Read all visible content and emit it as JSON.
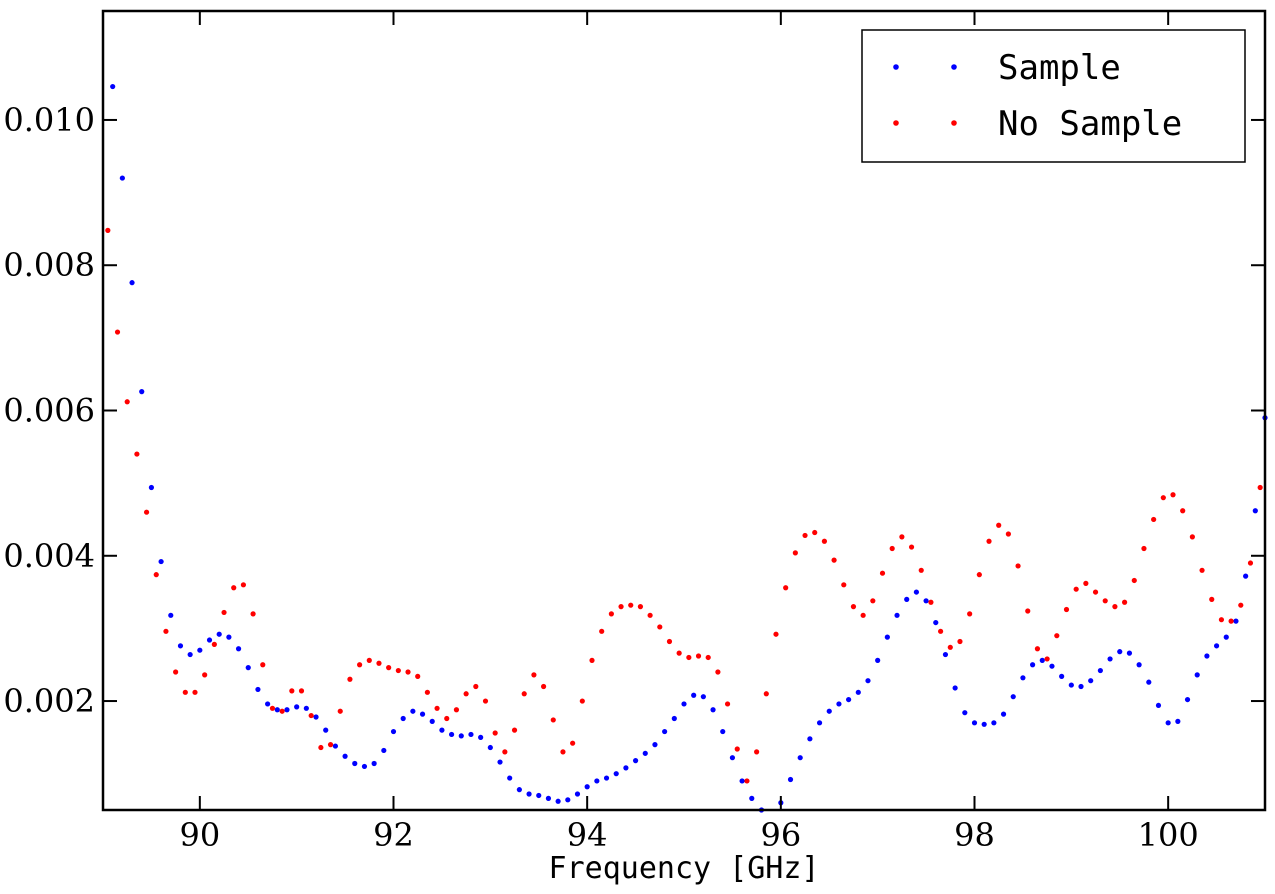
{
  "chart_data": {
    "type": "scatter",
    "title": "",
    "xlabel": "Frequency [GHz]",
    "ylabel": "",
    "xlim": [
      89.0,
      101.0
    ],
    "ylim": [
      0.0005,
      0.0115
    ],
    "xticks": [
      90,
      92,
      94,
      96,
      98,
      100
    ],
    "xtick_labels": [
      "90",
      "92",
      "94",
      "96",
      "98",
      "100"
    ],
    "yticks": [
      0.002,
      0.004,
      0.006,
      0.008,
      0.01
    ],
    "ytick_labels": [
      "0.002",
      "0.004",
      "0.006",
      "0.008",
      "0.010"
    ],
    "grid": false,
    "legend": "top-right",
    "series": [
      {
        "name": "Sample",
        "color": "#0000ff",
        "x": [
          89.1,
          89.2,
          89.3,
          89.4,
          89.5,
          89.6,
          89.7,
          89.8,
          89.9,
          90.0,
          90.1,
          90.2,
          90.3,
          90.4,
          90.5,
          90.6,
          90.7,
          90.8,
          90.9,
          91.0,
          91.1,
          91.2,
          91.3,
          91.4,
          91.5,
          91.6,
          91.7,
          91.8,
          91.9,
          92.0,
          92.1,
          92.2,
          92.3,
          92.4,
          92.5,
          92.6,
          92.7,
          92.8,
          92.9,
          93.0,
          93.1,
          93.2,
          93.3,
          93.4,
          93.5,
          93.6,
          93.7,
          93.8,
          93.9,
          94.0,
          94.1,
          94.2,
          94.3,
          94.4,
          94.5,
          94.6,
          94.7,
          94.8,
          94.9,
          95.0,
          95.1,
          95.2,
          95.3,
          95.4,
          95.5,
          95.6,
          95.7,
          95.8,
          95.9,
          96.0,
          96.1,
          96.2,
          96.3,
          96.4,
          96.5,
          96.6,
          96.7,
          96.8,
          96.9,
          97.0,
          97.1,
          97.2,
          97.3,
          97.4,
          97.5,
          97.6,
          97.7,
          97.8,
          97.9,
          98.0,
          98.1,
          98.2,
          98.3,
          98.4,
          98.5,
          98.6,
          98.7,
          98.8,
          98.9,
          99.0,
          99.1,
          99.2,
          99.3,
          99.4,
          99.5,
          99.6,
          99.7,
          99.8,
          99.9,
          100.0,
          100.1,
          100.2,
          100.3,
          100.4,
          100.5,
          100.6,
          100.7,
          100.8,
          100.9,
          101.0
        ],
        "y": [
          0.01046,
          0.0092,
          0.00776,
          0.00626,
          0.00494,
          0.00392,
          0.00318,
          0.00276,
          0.00264,
          0.0027,
          0.00284,
          0.00292,
          0.00288,
          0.00272,
          0.00246,
          0.00216,
          0.00196,
          0.00188,
          0.00188,
          0.00192,
          0.0019,
          0.00178,
          0.0016,
          0.00138,
          0.00124,
          0.00114,
          0.0011,
          0.00114,
          0.00132,
          0.00158,
          0.00176,
          0.00186,
          0.00182,
          0.00172,
          0.0016,
          0.00154,
          0.00152,
          0.00154,
          0.0015,
          0.00136,
          0.00116,
          0.00094,
          0.00078,
          0.00072,
          0.0007,
          0.00066,
          0.00062,
          0.00064,
          0.00072,
          0.00082,
          0.0009,
          0.00094,
          0.001,
          0.00108,
          0.00118,
          0.00128,
          0.0014,
          0.00158,
          0.00176,
          0.00196,
          0.00208,
          0.00206,
          0.00188,
          0.00158,
          0.00122,
          0.0009,
          0.00066,
          0.0005,
          0.00046,
          0.0006,
          0.00092,
          0.00122,
          0.00148,
          0.0017,
          0.00186,
          0.00196,
          0.00202,
          0.00212,
          0.00228,
          0.00256,
          0.00288,
          0.00318,
          0.0034,
          0.0035,
          0.00338,
          0.00308,
          0.00264,
          0.00218,
          0.00184,
          0.0017,
          0.00168,
          0.0017,
          0.00182,
          0.00206,
          0.00232,
          0.0025,
          0.00256,
          0.00248,
          0.00234,
          0.00222,
          0.0022,
          0.00228,
          0.00242,
          0.00258,
          0.00268,
          0.00266,
          0.0025,
          0.00226,
          0.00194,
          0.0017,
          0.00172,
          0.00202,
          0.00236,
          0.00262,
          0.00276,
          0.00288,
          0.0031,
          0.00372,
          0.00462,
          0.0059
        ]
      },
      {
        "name": "No Sample",
        "color": "#ff0000",
        "x": [
          89.05,
          89.15,
          89.25,
          89.35,
          89.45,
          89.55,
          89.65,
          89.75,
          89.85,
          89.95,
          90.05,
          90.15,
          90.25,
          90.35,
          90.45,
          90.55,
          90.65,
          90.75,
          90.85,
          90.95,
          91.05,
          91.15,
          91.25,
          91.35,
          91.45,
          91.55,
          91.65,
          91.75,
          91.85,
          91.95,
          92.05,
          92.15,
          92.25,
          92.35,
          92.45,
          92.55,
          92.65,
          92.75,
          92.85,
          92.95,
          93.05,
          93.15,
          93.25,
          93.35,
          93.45,
          93.55,
          93.65,
          93.75,
          93.85,
          93.95,
          94.05,
          94.15,
          94.25,
          94.35,
          94.45,
          94.55,
          94.65,
          94.75,
          94.85,
          94.95,
          95.05,
          95.15,
          95.25,
          95.35,
          95.45,
          95.55,
          95.65,
          95.75,
          95.85,
          95.95,
          96.05,
          96.15,
          96.25,
          96.35,
          96.45,
          96.55,
          96.65,
          96.75,
          96.85,
          96.95,
          97.05,
          97.15,
          97.25,
          97.35,
          97.45,
          97.55,
          97.65,
          97.75,
          97.85,
          97.95,
          98.05,
          98.15,
          98.25,
          98.35,
          98.45,
          98.55,
          98.65,
          98.75,
          98.85,
          98.95,
          99.05,
          99.15,
          99.25,
          99.35,
          99.45,
          99.55,
          99.65,
          99.75,
          99.85,
          99.95,
          100.05,
          100.15,
          100.25,
          100.35,
          100.45,
          100.55,
          100.65,
          100.75,
          100.85,
          100.95
        ],
        "y": [
          0.00848,
          0.00708,
          0.00612,
          0.0054,
          0.0046,
          0.00374,
          0.00296,
          0.0024,
          0.00212,
          0.00212,
          0.00236,
          0.00278,
          0.00322,
          0.00356,
          0.0036,
          0.0032,
          0.0025,
          0.0019,
          0.00186,
          0.00214,
          0.00214,
          0.0018,
          0.00136,
          0.0014,
          0.00186,
          0.0023,
          0.0025,
          0.00256,
          0.00252,
          0.00246,
          0.00242,
          0.0024,
          0.00234,
          0.00212,
          0.0019,
          0.00176,
          0.00188,
          0.0021,
          0.0022,
          0.002,
          0.00156,
          0.0013,
          0.0016,
          0.0021,
          0.00236,
          0.0022,
          0.00174,
          0.0013,
          0.00142,
          0.002,
          0.00256,
          0.00296,
          0.0032,
          0.0033,
          0.00332,
          0.0033,
          0.00318,
          0.00302,
          0.00282,
          0.00266,
          0.0026,
          0.00262,
          0.0026,
          0.0024,
          0.00196,
          0.00134,
          0.0009,
          0.0013,
          0.0021,
          0.00292,
          0.00356,
          0.00404,
          0.00428,
          0.00432,
          0.0042,
          0.00394,
          0.0036,
          0.0033,
          0.00318,
          0.00338,
          0.00376,
          0.0041,
          0.00426,
          0.00412,
          0.0038,
          0.00336,
          0.00296,
          0.00274,
          0.00282,
          0.0032,
          0.00374,
          0.0042,
          0.00442,
          0.0043,
          0.00386,
          0.00324,
          0.00272,
          0.00258,
          0.0029,
          0.00326,
          0.00354,
          0.00362,
          0.0035,
          0.00338,
          0.0033,
          0.00336,
          0.00366,
          0.0041,
          0.0045,
          0.0048,
          0.00484,
          0.00462,
          0.00426,
          0.0038,
          0.0034,
          0.00312,
          0.0031,
          0.00332,
          0.0039,
          0.00494
        ]
      }
    ]
  }
}
